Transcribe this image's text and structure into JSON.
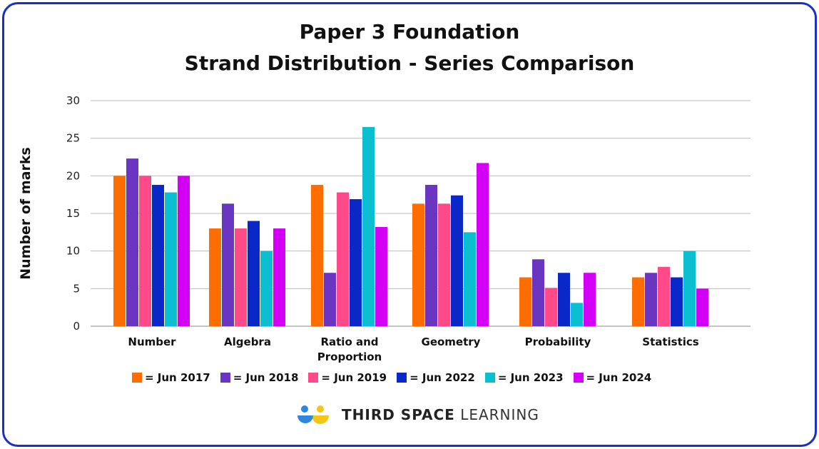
{
  "chart_data": {
    "type": "bar",
    "title": "Paper 3 Foundation",
    "subtitle": "Strand Distribution - Series Comparison",
    "xlabel": "",
    "ylabel": "Number of marks",
    "ylim": [
      0,
      30
    ],
    "yticks": [
      "0",
      "5",
      "10",
      "15",
      "20",
      "25",
      "30"
    ],
    "grid": true,
    "legend_placement": "bottom",
    "categories": [
      [
        "Number"
      ],
      [
        "Algebra"
      ],
      [
        "Ratio and",
        "Proportion"
      ],
      [
        "Geometry"
      ],
      [
        "Probability"
      ],
      [
        "Statistics"
      ]
    ],
    "series": [
      {
        "name": "= Jun 2017",
        "color": "#ff6d00",
        "values": [
          20,
          13,
          18.8,
          16.3,
          6.5,
          6.5
        ]
      },
      {
        "name": "= Jun 2018",
        "color": "#6a35c0",
        "values": [
          22.3,
          16.3,
          7.1,
          18.8,
          8.9,
          7.1
        ]
      },
      {
        "name": "= Jun 2019",
        "color": "#ff4a8a",
        "values": [
          20,
          13,
          17.8,
          16.3,
          5.1,
          7.9
        ]
      },
      {
        "name": "= Jun 2022",
        "color": "#0a28c8",
        "values": [
          18.8,
          14,
          16.9,
          17.4,
          7.1,
          6.5
        ]
      },
      {
        "name": "= Jun 2023",
        "color": "#0cbfd0",
        "values": [
          17.8,
          10,
          26.5,
          12.5,
          3.1,
          10
        ]
      },
      {
        "name": "= Jun 2024",
        "color": "#d400f5",
        "values": [
          20,
          13,
          13.2,
          21.7,
          7.1,
          5
        ]
      }
    ]
  },
  "logo": {
    "bold": "THIRD SPACE",
    "light": "LEARNING"
  }
}
